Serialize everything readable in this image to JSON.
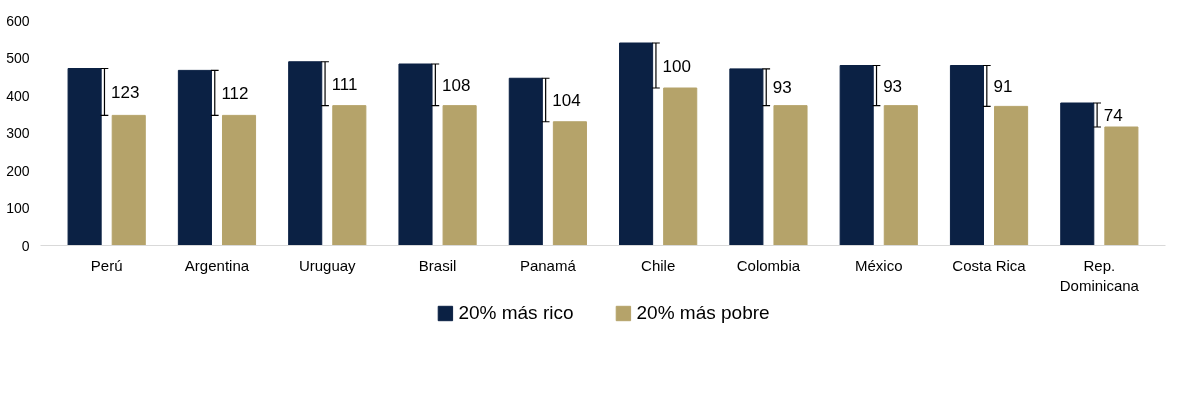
{
  "chart_data": {
    "type": "bar",
    "categories": [
      "Perú",
      "Argentina",
      "Uruguay",
      "Brasil",
      "Panamá",
      "Chile",
      "Colombia",
      "México",
      "Costa Rica",
      "Rep.\nDominicana"
    ],
    "series": [
      {
        "name": "20% más rico",
        "color": "#0b2144",
        "values": [
          472,
          467,
          490,
          484,
          446,
          540,
          471,
          480,
          480,
          380
        ]
      },
      {
        "name": "20% más pobre",
        "color": "#b5a36a",
        "values": [
          347,
          347,
          373,
          373,
          330,
          420,
          373,
          373,
          371,
          316
        ]
      }
    ],
    "annotations": [
      "123",
      "112",
      "111",
      "108",
      "104",
      "100",
      "93",
      "93",
      "91",
      "74"
    ],
    "ylim": [
      0,
      600
    ],
    "yticks": [
      0,
      100,
      200,
      300,
      400,
      500,
      600
    ],
    "grid": false,
    "legend": "bottom"
  }
}
